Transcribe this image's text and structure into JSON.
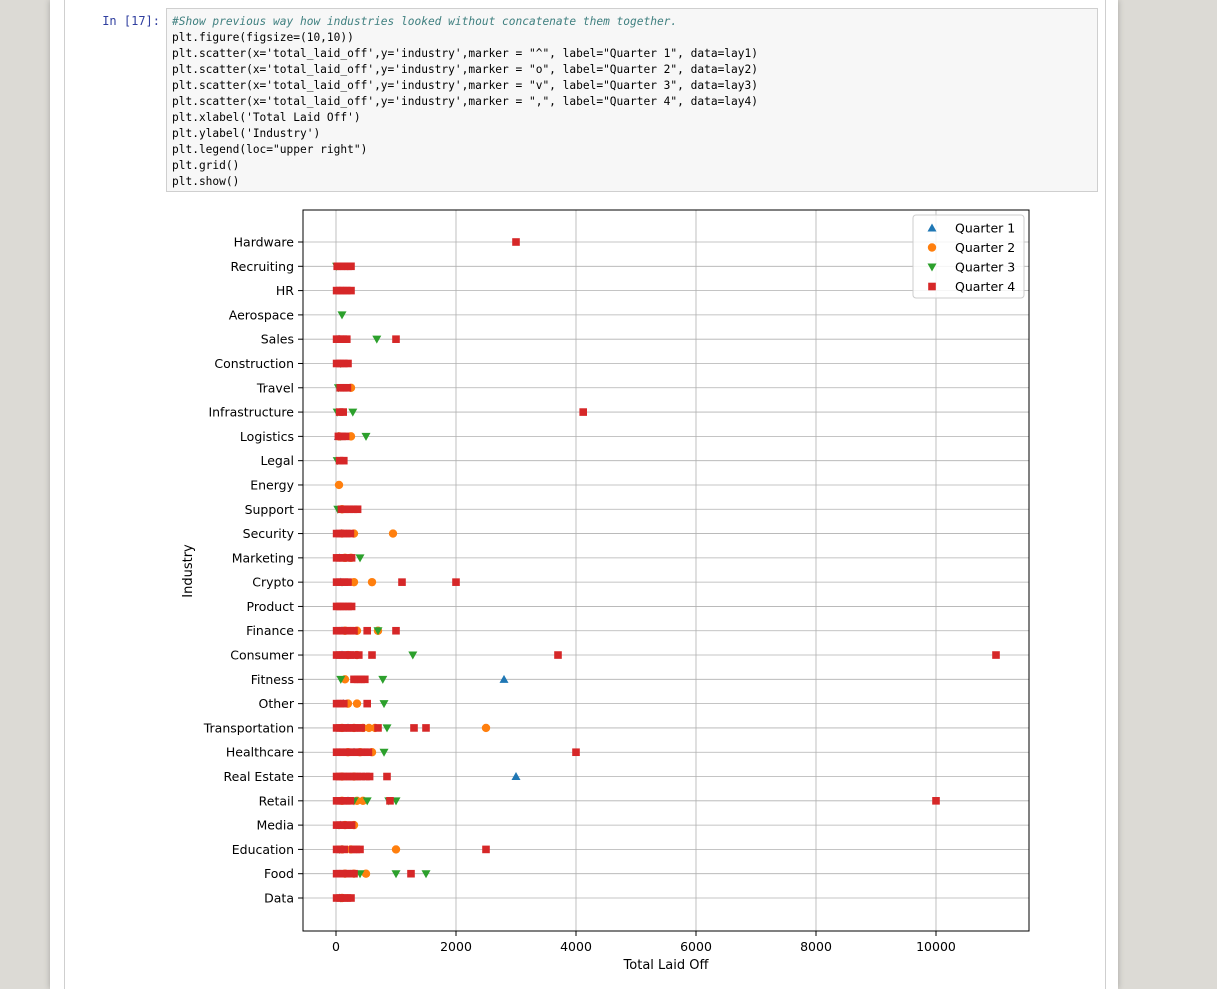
{
  "cell": {
    "prompt": "In [17]:",
    "code_lines": [
      "#Show previous way how industries looked without concatenate them together.",
      "plt.figure(figsize=(10,10))",
      "plt.scatter(x='total_laid_off',y='industry',marker = \"^\", label=\"Quarter 1\", data=lay1)",
      "plt.scatter(x='total_laid_off',y='industry',marker = \"o\", label=\"Quarter 2\", data=lay2)",
      "plt.scatter(x='total_laid_off',y='industry',marker = \"v\", label=\"Quarter 3\", data=lay3)",
      "plt.scatter(x='total_laid_off',y='industry',marker = \",\", label=\"Quarter 4\", data=lay4)",
      "plt.xlabel('Total Laid Off')",
      "plt.ylabel('Industry')",
      "plt.legend(loc=\"upper right\")",
      "plt.grid()",
      "plt.show()"
    ]
  },
  "chart_data": {
    "type": "scatter",
    "xlabel": "Total Laid Off",
    "ylabel": "Industry",
    "xlim": [
      -550,
      11550
    ],
    "xticks": [
      0,
      2000,
      4000,
      6000,
      8000,
      10000
    ],
    "grid": true,
    "legend_position": "top-right",
    "categories": [
      "Hardware",
      "Recruiting",
      "HR",
      "Aerospace",
      "Sales",
      "Construction",
      "Travel",
      "Infrastructure",
      "Logistics",
      "Legal",
      "Energy",
      "Support",
      "Security",
      "Marketing",
      "Crypto",
      "Product",
      "Finance",
      "Consumer",
      "Fitness",
      "Other",
      "Transportation",
      "Healthcare",
      "Real Estate",
      "Retail",
      "Media",
      "Education",
      "Food",
      "Data"
    ],
    "colors": {
      "Quarter 1": "#1f77b4",
      "Quarter 2": "#ff7f0e",
      "Quarter 3": "#2ca02c",
      "Quarter 4": "#d62728"
    },
    "series": [
      {
        "name": "Quarter 1",
        "marker": "triangle-up",
        "points": [
          [
            "Fitness",
            2800
          ],
          [
            "Real Estate",
            3000
          ],
          [
            "Retail",
            200
          ],
          [
            "Food",
            150
          ],
          [
            "Healthcare",
            300
          ],
          [
            "Consumer",
            100
          ],
          [
            "Transportation",
            200
          ],
          [
            "Finance",
            100
          ],
          [
            "Crypto",
            80
          ],
          [
            "Marketing",
            60
          ],
          [
            "Security",
            90
          ],
          [
            "Data",
            60
          ],
          [
            "Education",
            100
          ],
          [
            "Media",
            70
          ],
          [
            "Other",
            120
          ],
          [
            "Sales",
            50
          ],
          [
            "Logistics",
            40
          ]
        ]
      },
      {
        "name": "Quarter 2",
        "marker": "circle",
        "points": [
          [
            "Travel",
            250
          ],
          [
            "Logistics",
            50
          ],
          [
            "Logistics",
            250
          ],
          [
            "Energy",
            50
          ],
          [
            "Security",
            100
          ],
          [
            "Security",
            300
          ],
          [
            "Security",
            950
          ],
          [
            "Marketing",
            150
          ],
          [
            "Marketing",
            250
          ],
          [
            "Crypto",
            300
          ],
          [
            "Crypto",
            600
          ],
          [
            "Finance",
            150
          ],
          [
            "Finance",
            350
          ],
          [
            "Finance",
            700
          ],
          [
            "Consumer",
            200
          ],
          [
            "Consumer",
            350
          ],
          [
            "Fitness",
            150
          ],
          [
            "Other",
            200
          ],
          [
            "Other",
            350
          ],
          [
            "Transportation",
            100
          ],
          [
            "Transportation",
            300
          ],
          [
            "Transportation",
            450
          ],
          [
            "Transportation",
            550
          ],
          [
            "Transportation",
            650
          ],
          [
            "Transportation",
            2500
          ],
          [
            "Healthcare",
            200
          ],
          [
            "Healthcare",
            400
          ],
          [
            "Healthcare",
            600
          ],
          [
            "Real Estate",
            100
          ],
          [
            "Real Estate",
            300
          ],
          [
            "Retail",
            100
          ],
          [
            "Retail",
            350
          ],
          [
            "Retail",
            450
          ],
          [
            "Media",
            150
          ],
          [
            "Media",
            300
          ],
          [
            "Education",
            100
          ],
          [
            "Education",
            250
          ],
          [
            "Education",
            1000
          ],
          [
            "Food",
            150
          ],
          [
            "Food",
            300
          ],
          [
            "Food",
            500
          ],
          [
            "Data",
            100
          ],
          [
            "Support",
            100
          ]
        ]
      },
      {
        "name": "Quarter 3",
        "marker": "triangle-down",
        "points": [
          [
            "Recruiting",
            10
          ],
          [
            "Aerospace",
            100
          ],
          [
            "Sales",
            680
          ],
          [
            "Construction",
            80
          ],
          [
            "Travel",
            40
          ],
          [
            "Infrastructure",
            20
          ],
          [
            "Infrastructure",
            280
          ],
          [
            "Logistics",
            80
          ],
          [
            "Logistics",
            500
          ],
          [
            "Legal",
            20
          ],
          [
            "Support",
            30
          ],
          [
            "Marketing",
            400
          ],
          [
            "Crypto",
            100
          ],
          [
            "Finance",
            700
          ],
          [
            "Consumer",
            1280
          ],
          [
            "Fitness",
            80
          ],
          [
            "Fitness",
            780
          ],
          [
            "Other",
            800
          ],
          [
            "Transportation",
            850
          ],
          [
            "Healthcare",
            800
          ],
          [
            "Retail",
            300
          ],
          [
            "Retail",
            520
          ],
          [
            "Retail",
            880
          ],
          [
            "Retail",
            1000
          ],
          [
            "Media",
            50
          ],
          [
            "Education",
            60
          ],
          [
            "Food",
            400
          ],
          [
            "Food",
            1000
          ],
          [
            "Food",
            1500
          ],
          [
            "Data",
            80
          ]
        ]
      },
      {
        "name": "Quarter 4",
        "marker": "square",
        "points": [
          [
            "Hardware",
            3000
          ],
          [
            "Recruiting",
            20
          ],
          [
            "Recruiting",
            80
          ],
          [
            "Recruiting",
            140
          ],
          [
            "Recruiting",
            200
          ],
          [
            "Recruiting",
            250
          ],
          [
            "HR",
            10
          ],
          [
            "HR",
            60
          ],
          [
            "HR",
            120
          ],
          [
            "HR",
            180
          ],
          [
            "HR",
            250
          ],
          [
            "Sales",
            10
          ],
          [
            "Sales",
            60
          ],
          [
            "Sales",
            120
          ],
          [
            "Sales",
            180
          ],
          [
            "Sales",
            1000
          ],
          [
            "Construction",
            10
          ],
          [
            "Construction",
            70
          ],
          [
            "Construction",
            130
          ],
          [
            "Construction",
            200
          ],
          [
            "Travel",
            70
          ],
          [
            "Travel",
            130
          ],
          [
            "Travel",
            190
          ],
          [
            "Infrastructure",
            60
          ],
          [
            "Infrastructure",
            120
          ],
          [
            "Infrastructure",
            4120
          ],
          [
            "Logistics",
            40
          ],
          [
            "Logistics",
            100
          ],
          [
            "Logistics",
            160
          ],
          [
            "Legal",
            60
          ],
          [
            "Legal",
            130
          ],
          [
            "Support",
            90
          ],
          [
            "Support",
            150
          ],
          [
            "Support",
            220
          ],
          [
            "Support",
            290
          ],
          [
            "Support",
            360
          ],
          [
            "Security",
            10
          ],
          [
            "Security",
            60
          ],
          [
            "Security",
            120
          ],
          [
            "Security",
            180
          ],
          [
            "Security",
            240
          ],
          [
            "Marketing",
            10
          ],
          [
            "Marketing",
            60
          ],
          [
            "Marketing",
            120
          ],
          [
            "Marketing",
            180
          ],
          [
            "Marketing",
            260
          ],
          [
            "Crypto",
            10
          ],
          [
            "Crypto",
            70
          ],
          [
            "Crypto",
            140
          ],
          [
            "Crypto",
            200
          ],
          [
            "Crypto",
            1100
          ],
          [
            "Crypto",
            2000
          ],
          [
            "Product",
            10
          ],
          [
            "Product",
            70
          ],
          [
            "Product",
            130
          ],
          [
            "Product",
            200
          ],
          [
            "Product",
            260
          ],
          [
            "Finance",
            10
          ],
          [
            "Finance",
            60
          ],
          [
            "Finance",
            120
          ],
          [
            "Finance",
            180
          ],
          [
            "Finance",
            240
          ],
          [
            "Finance",
            300
          ],
          [
            "Finance",
            520
          ],
          [
            "Finance",
            1000
          ],
          [
            "Consumer",
            10
          ],
          [
            "Consumer",
            60
          ],
          [
            "Consumer",
            120
          ],
          [
            "Consumer",
            180
          ],
          [
            "Consumer",
            240
          ],
          [
            "Consumer",
            300
          ],
          [
            "Consumer",
            380
          ],
          [
            "Consumer",
            600
          ],
          [
            "Consumer",
            3700
          ],
          [
            "Consumer",
            11000
          ],
          [
            "Fitness",
            300
          ],
          [
            "Fitness",
            360
          ],
          [
            "Fitness",
            420
          ],
          [
            "Fitness",
            480
          ],
          [
            "Other",
            10
          ],
          [
            "Other",
            70
          ],
          [
            "Other",
            130
          ],
          [
            "Other",
            520
          ],
          [
            "Transportation",
            10
          ],
          [
            "Transportation",
            60
          ],
          [
            "Transportation",
            120
          ],
          [
            "Transportation",
            180
          ],
          [
            "Transportation",
            240
          ],
          [
            "Transportation",
            300
          ],
          [
            "Transportation",
            360
          ],
          [
            "Transportation",
            420
          ],
          [
            "Transportation",
            700
          ],
          [
            "Transportation",
            1300
          ],
          [
            "Transportation",
            1500
          ],
          [
            "Healthcare",
            10
          ],
          [
            "Healthcare",
            60
          ],
          [
            "Healthcare",
            120
          ],
          [
            "Healthcare",
            180
          ],
          [
            "Healthcare",
            240
          ],
          [
            "Healthcare",
            300
          ],
          [
            "Healthcare",
            360
          ],
          [
            "Healthcare",
            420
          ],
          [
            "Healthcare",
            480
          ],
          [
            "Healthcare",
            540
          ],
          [
            "Healthcare",
            4000
          ],
          [
            "Real Estate",
            10
          ],
          [
            "Real Estate",
            60
          ],
          [
            "Real Estate",
            120
          ],
          [
            "Real Estate",
            180
          ],
          [
            "Real Estate",
            240
          ],
          [
            "Real Estate",
            300
          ],
          [
            "Real Estate",
            360
          ],
          [
            "Real Estate",
            420
          ],
          [
            "Real Estate",
            500
          ],
          [
            "Real Estate",
            560
          ],
          [
            "Real Estate",
            850
          ],
          [
            "Retail",
            10
          ],
          [
            "Retail",
            60
          ],
          [
            "Retail",
            120
          ],
          [
            "Retail",
            180
          ],
          [
            "Retail",
            240
          ],
          [
            "Retail",
            900
          ],
          [
            "Retail",
            10000
          ],
          [
            "Media",
            10
          ],
          [
            "Media",
            70
          ],
          [
            "Media",
            130
          ],
          [
            "Media",
            200
          ],
          [
            "Media",
            260
          ],
          [
            "Education",
            10
          ],
          [
            "Education",
            70
          ],
          [
            "Education",
            140
          ],
          [
            "Education",
            280
          ],
          [
            "Education",
            340
          ],
          [
            "Education",
            400
          ],
          [
            "Education",
            2500
          ],
          [
            "Food",
            10
          ],
          [
            "Food",
            60
          ],
          [
            "Food",
            120
          ],
          [
            "Food",
            180
          ],
          [
            "Food",
            240
          ],
          [
            "Food",
            300
          ],
          [
            "Food",
            1250
          ],
          [
            "Data",
            10
          ],
          [
            "Data",
            70
          ],
          [
            "Data",
            130
          ],
          [
            "Data",
            190
          ],
          [
            "Data",
            250
          ]
        ]
      }
    ]
  }
}
